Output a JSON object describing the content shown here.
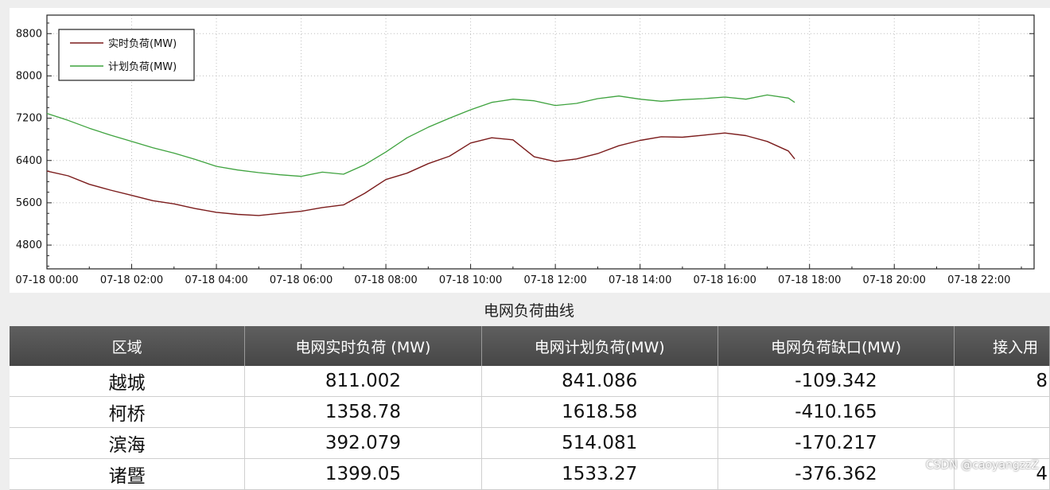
{
  "chart_data": {
    "type": "line",
    "x_unit": "hours",
    "x_ticks": [
      "07-18 00:00",
      "07-18 02:00",
      "07-18 04:00",
      "07-18 06:00",
      "07-18 08:00",
      "07-18 10:00",
      "07-18 12:00",
      "07-18 14:00",
      "07-18 16:00",
      "07-18 18:00",
      "07-18 20:00",
      "07-18 22:00"
    ],
    "x_tick_values": [
      0,
      2,
      4,
      6,
      8,
      10,
      12,
      14,
      16,
      18,
      20,
      22
    ],
    "xlim": [
      0,
      23.3
    ],
    "y_ticks": [
      4800,
      5600,
      6400,
      7200,
      8000,
      8800
    ],
    "ylim": [
      4350,
      9150
    ],
    "grid": true,
    "legend_position": "top-left",
    "series": [
      {
        "name": "实时负荷(MW)",
        "color": "#7b1c1c",
        "points": [
          [
            0,
            6200
          ],
          [
            0.5,
            6110
          ],
          [
            1,
            5950
          ],
          [
            1.5,
            5840
          ],
          [
            2,
            5740
          ],
          [
            2.5,
            5640
          ],
          [
            3,
            5580
          ],
          [
            3.5,
            5490
          ],
          [
            4,
            5420
          ],
          [
            4.5,
            5380
          ],
          [
            5,
            5360
          ],
          [
            5.5,
            5400
          ],
          [
            6,
            5440
          ],
          [
            6.5,
            5510
          ],
          [
            7,
            5560
          ],
          [
            7.5,
            5780
          ],
          [
            8,
            6040
          ],
          [
            8.5,
            6160
          ],
          [
            9,
            6340
          ],
          [
            9.5,
            6480
          ],
          [
            10,
            6730
          ],
          [
            10.5,
            6830
          ],
          [
            11,
            6790
          ],
          [
            11.5,
            6470
          ],
          [
            12,
            6380
          ],
          [
            12.5,
            6430
          ],
          [
            13,
            6530
          ],
          [
            13.5,
            6680
          ],
          [
            14,
            6780
          ],
          [
            14.5,
            6850
          ],
          [
            15,
            6840
          ],
          [
            15.5,
            6880
          ],
          [
            16,
            6920
          ],
          [
            16.5,
            6870
          ],
          [
            17,
            6760
          ],
          [
            17.5,
            6580
          ],
          [
            17.65,
            6430
          ]
        ]
      },
      {
        "name": "计划负荷(MW)",
        "color": "#3fa33f",
        "points": [
          [
            0,
            7290
          ],
          [
            0.5,
            7160
          ],
          [
            1,
            7010
          ],
          [
            1.5,
            6880
          ],
          [
            2,
            6760
          ],
          [
            2.5,
            6640
          ],
          [
            3,
            6540
          ],
          [
            3.5,
            6420
          ],
          [
            4,
            6290
          ],
          [
            4.5,
            6220
          ],
          [
            5,
            6170
          ],
          [
            5.5,
            6130
          ],
          [
            6,
            6100
          ],
          [
            6.5,
            6180
          ],
          [
            7,
            6140
          ],
          [
            7.5,
            6320
          ],
          [
            8,
            6560
          ],
          [
            8.5,
            6830
          ],
          [
            9,
            7030
          ],
          [
            9.5,
            7200
          ],
          [
            10,
            7360
          ],
          [
            10.5,
            7500
          ],
          [
            11,
            7560
          ],
          [
            11.5,
            7530
          ],
          [
            12,
            7440
          ],
          [
            12.5,
            7480
          ],
          [
            13,
            7570
          ],
          [
            13.5,
            7620
          ],
          [
            14,
            7560
          ],
          [
            14.5,
            7520
          ],
          [
            15,
            7550
          ],
          [
            15.5,
            7570
          ],
          [
            16,
            7600
          ],
          [
            16.5,
            7560
          ],
          [
            17,
            7640
          ],
          [
            17.5,
            7580
          ],
          [
            17.65,
            7500
          ]
        ]
      }
    ],
    "title": "电网负荷曲线"
  },
  "table": {
    "headers": [
      "区域",
      "电网实时负荷 (MW)",
      "电网计划负荷(MW)",
      "电网负荷缺口(MW)",
      "接入用"
    ],
    "rows": [
      [
        "越城",
        "811.002",
        "841.086",
        "-109.342",
        "8"
      ],
      [
        "柯桥",
        "1358.78",
        "1618.58",
        "-410.165",
        ""
      ],
      [
        "滨海",
        "392.079",
        "514.081",
        "-170.217",
        ""
      ],
      [
        "诸暨",
        "1399.05",
        "1533.27",
        "-376.362",
        "4"
      ]
    ]
  },
  "watermark": "CSDN @caoyangzzZ"
}
